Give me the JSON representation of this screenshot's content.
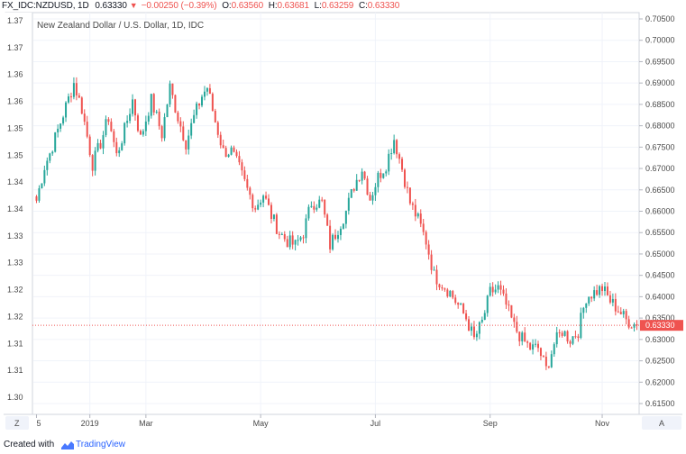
{
  "header": {
    "symbol": "FX_IDC:NZDUSD, 1D",
    "last": "0.63330",
    "change": "−0.00250 (−0.39%)",
    "open_label": "O:",
    "open": "0.63560",
    "high_label": "H:",
    "high": "0.63681",
    "low_label": "L:",
    "low": "0.63259",
    "close_label": "C:",
    "close": "0.63330"
  },
  "footer": {
    "created_label": "Created with",
    "brand": "TradingView"
  },
  "buttons": {
    "zoom": "Z",
    "auto": "A"
  },
  "colors": {
    "up": "#26a69a",
    "down": "#ef5350",
    "last_line": "#ef5350",
    "grid": "#f0f3fa",
    "axis_text": "#4a4a4a"
  },
  "chart_data": {
    "type": "candlestick",
    "title": "New Zealand Dollar / U.S. Dollar, 1D, IDC",
    "price_axis": {
      "ticks": [
        "0.70500",
        "0.70000",
        "0.69500",
        "0.69000",
        "0.68500",
        "0.68000",
        "0.67500",
        "0.67000",
        "0.66500",
        "0.66000",
        "0.65500",
        "0.65000",
        "0.64500",
        "0.64000",
        "0.63500",
        "0.63000",
        "0.62500",
        "0.62000",
        "0.61500"
      ],
      "range": [
        0.612,
        0.707
      ]
    },
    "left_axis": {
      "ticks": [
        "1.37",
        "1.37",
        "1.36",
        "1.36",
        "1.35",
        "1.35",
        "1.34",
        "1.34",
        "1.33",
        "1.33",
        "1.32",
        "1.32",
        "1.31",
        "1.31",
        "1.30"
      ]
    },
    "time_axis": {
      "ticks": [
        {
          "label": "5",
          "bar": 0
        },
        {
          "label": "2019",
          "bar": 20
        },
        {
          "label": "Mar",
          "bar": 41
        },
        {
          "label": "May",
          "bar": 84
        },
        {
          "label": "Jul",
          "bar": 127
        },
        {
          "label": "Sep",
          "bar": 170
        },
        {
          "label": "Nov",
          "bar": 212
        }
      ]
    },
    "last_price": 0.6333,
    "last_price_label": "0.63330",
    "bar_count": 226,
    "close_path": [
      [
        0,
        0.6625
      ],
      [
        3,
        0.6705
      ],
      [
        5,
        0.6735
      ],
      [
        8,
        0.679
      ],
      [
        11,
        0.6845
      ],
      [
        14,
        0.69
      ],
      [
        17,
        0.684
      ],
      [
        21,
        0.671
      ],
      [
        24,
        0.676
      ],
      [
        27,
        0.682
      ],
      [
        30,
        0.673
      ],
      [
        33,
        0.679
      ],
      [
        36,
        0.686
      ],
      [
        39,
        0.677
      ],
      [
        43,
        0.686
      ],
      [
        47,
        0.678
      ],
      [
        50,
        0.689
      ],
      [
        53,
        0.682
      ],
      [
        56,
        0.676
      ],
      [
        59,
        0.682
      ],
      [
        62,
        0.687
      ],
      [
        64,
        0.689
      ],
      [
        67,
        0.681
      ],
      [
        70,
        0.674
      ],
      [
        73,
        0.674
      ],
      [
        76,
        0.67
      ],
      [
        79,
        0.665
      ],
      [
        82,
        0.661
      ],
      [
        85,
        0.664
      ],
      [
        88,
        0.659
      ],
      [
        91,
        0.655
      ],
      [
        94,
        0.653
      ],
      [
        97,
        0.652
      ],
      [
        100,
        0.655
      ],
      [
        103,
        0.662
      ],
      [
        107,
        0.662
      ],
      [
        110,
        0.652
      ],
      [
        113,
        0.656
      ],
      [
        116,
        0.66
      ],
      [
        119,
        0.666
      ],
      [
        122,
        0.67
      ],
      [
        125,
        0.663
      ],
      [
        128,
        0.668
      ],
      [
        131,
        0.671
      ],
      [
        134,
        0.677
      ],
      [
        137,
        0.67
      ],
      [
        140,
        0.662
      ],
      [
        143,
        0.658
      ],
      [
        146,
        0.653
      ],
      [
        149,
        0.645
      ],
      [
        152,
        0.643
      ],
      [
        155,
        0.641
      ],
      [
        158,
        0.638
      ],
      [
        161,
        0.635
      ],
      [
        164,
        0.63
      ],
      [
        167,
        0.634
      ],
      [
        170,
        0.641
      ],
      [
        173,
        0.642
      ],
      [
        176,
        0.638
      ],
      [
        179,
        0.633
      ],
      [
        182,
        0.63
      ],
      [
        185,
        0.628
      ],
      [
        188,
        0.628
      ],
      [
        191,
        0.623
      ],
      [
        194,
        0.629
      ],
      [
        197,
        0.632
      ],
      [
        200,
        0.63
      ],
      [
        203,
        0.632
      ],
      [
        206,
        0.64
      ],
      [
        209,
        0.641
      ],
      [
        212,
        0.642
      ],
      [
        215,
        0.639
      ],
      [
        218,
        0.637
      ],
      [
        221,
        0.6345
      ],
      [
        225,
        0.6333
      ]
    ]
  }
}
